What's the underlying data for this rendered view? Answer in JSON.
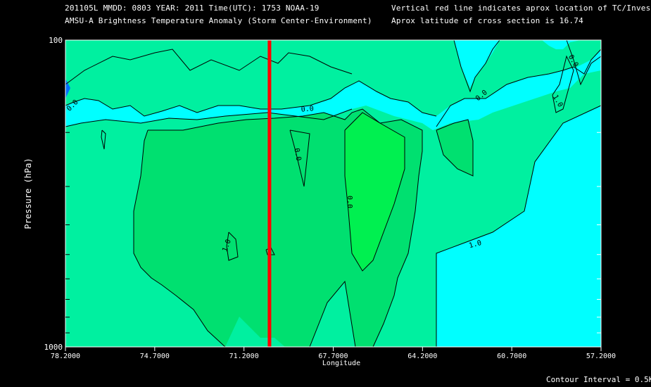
{
  "header": {
    "line1_left": "201105L  MMDD: 0803 YEAR: 2011 Time(UTC): 1753 NOAA-19",
    "line2_left": "AMSU-A Brightness Temperature Anomaly (Storm Center-Environment)",
    "line1_right": "Vertical red line indicates aprox location of TC/Invest",
    "line2_right": "Aprox latitude of cross section is 16.74"
  },
  "footer": {
    "contour_interval": "Contour Interval = 0.5K"
  },
  "colors": {
    "background": "#000000",
    "cyan_band": "#00ffff",
    "light_green": "#00f0a0",
    "mid_green": "#00e070",
    "bright_green": "#00f050",
    "blue_patch": "#0070ff",
    "tc_line": "#ff0000",
    "contour": "#000000"
  },
  "chart_data": {
    "type": "contour",
    "xlabel": "Longitude",
    "ylabel": "Pressure (hPa)",
    "x_axis": {
      "range": [
        78.2,
        57.2
      ],
      "ticks": [
        "78.2000",
        "74.7000",
        "71.2000",
        "67.7000",
        "64.2000",
        "60.7000",
        "57.2000"
      ]
    },
    "y_axis": {
      "scale": "log",
      "range": [
        1000,
        100
      ],
      "tick_labels": [
        "100",
        "1000"
      ]
    },
    "tc_longitude": 70.2,
    "contour_interval": 0.5,
    "contour_labels": [
      "0.0",
      "0.0",
      "0.0",
      "0.0",
      "0.0",
      "1.0",
      "1.0",
      "1.0",
      "0.0",
      "0.0"
    ],
    "anomaly_levels": [
      "-0.5",
      "0.0",
      "0.5",
      "1.0",
      "1.5"
    ]
  }
}
